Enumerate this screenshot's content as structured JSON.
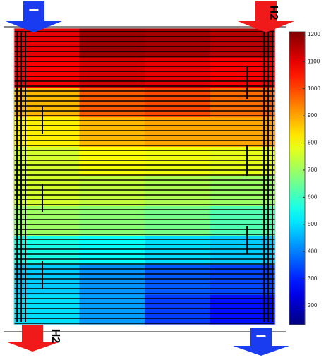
{
  "chart_data": {
    "type": "heatmap",
    "values": [
      [
        1100,
        1180,
        1170,
        1150
      ],
      [
        1080,
        1120,
        1100,
        1080
      ],
      [
        880,
        980,
        1000,
        960
      ],
      [
        820,
        880,
        900,
        900
      ],
      [
        760,
        800,
        790,
        780
      ],
      [
        760,
        740,
        720,
        700
      ],
      [
        700,
        680,
        660,
        620
      ],
      [
        560,
        540,
        500,
        480
      ],
      [
        480,
        420,
        360,
        340
      ],
      [
        500,
        430,
        330,
        280
      ]
    ],
    "zlim": [
      130,
      1210
    ],
    "colorbar_ticks": [
      1200,
      1100,
      1000,
      900,
      800,
      700,
      600,
      500,
      400,
      300,
      200
    ],
    "colormap": "jet",
    "annotations": [
      "−",
      "H2",
      "H2",
      "−"
    ]
  }
}
